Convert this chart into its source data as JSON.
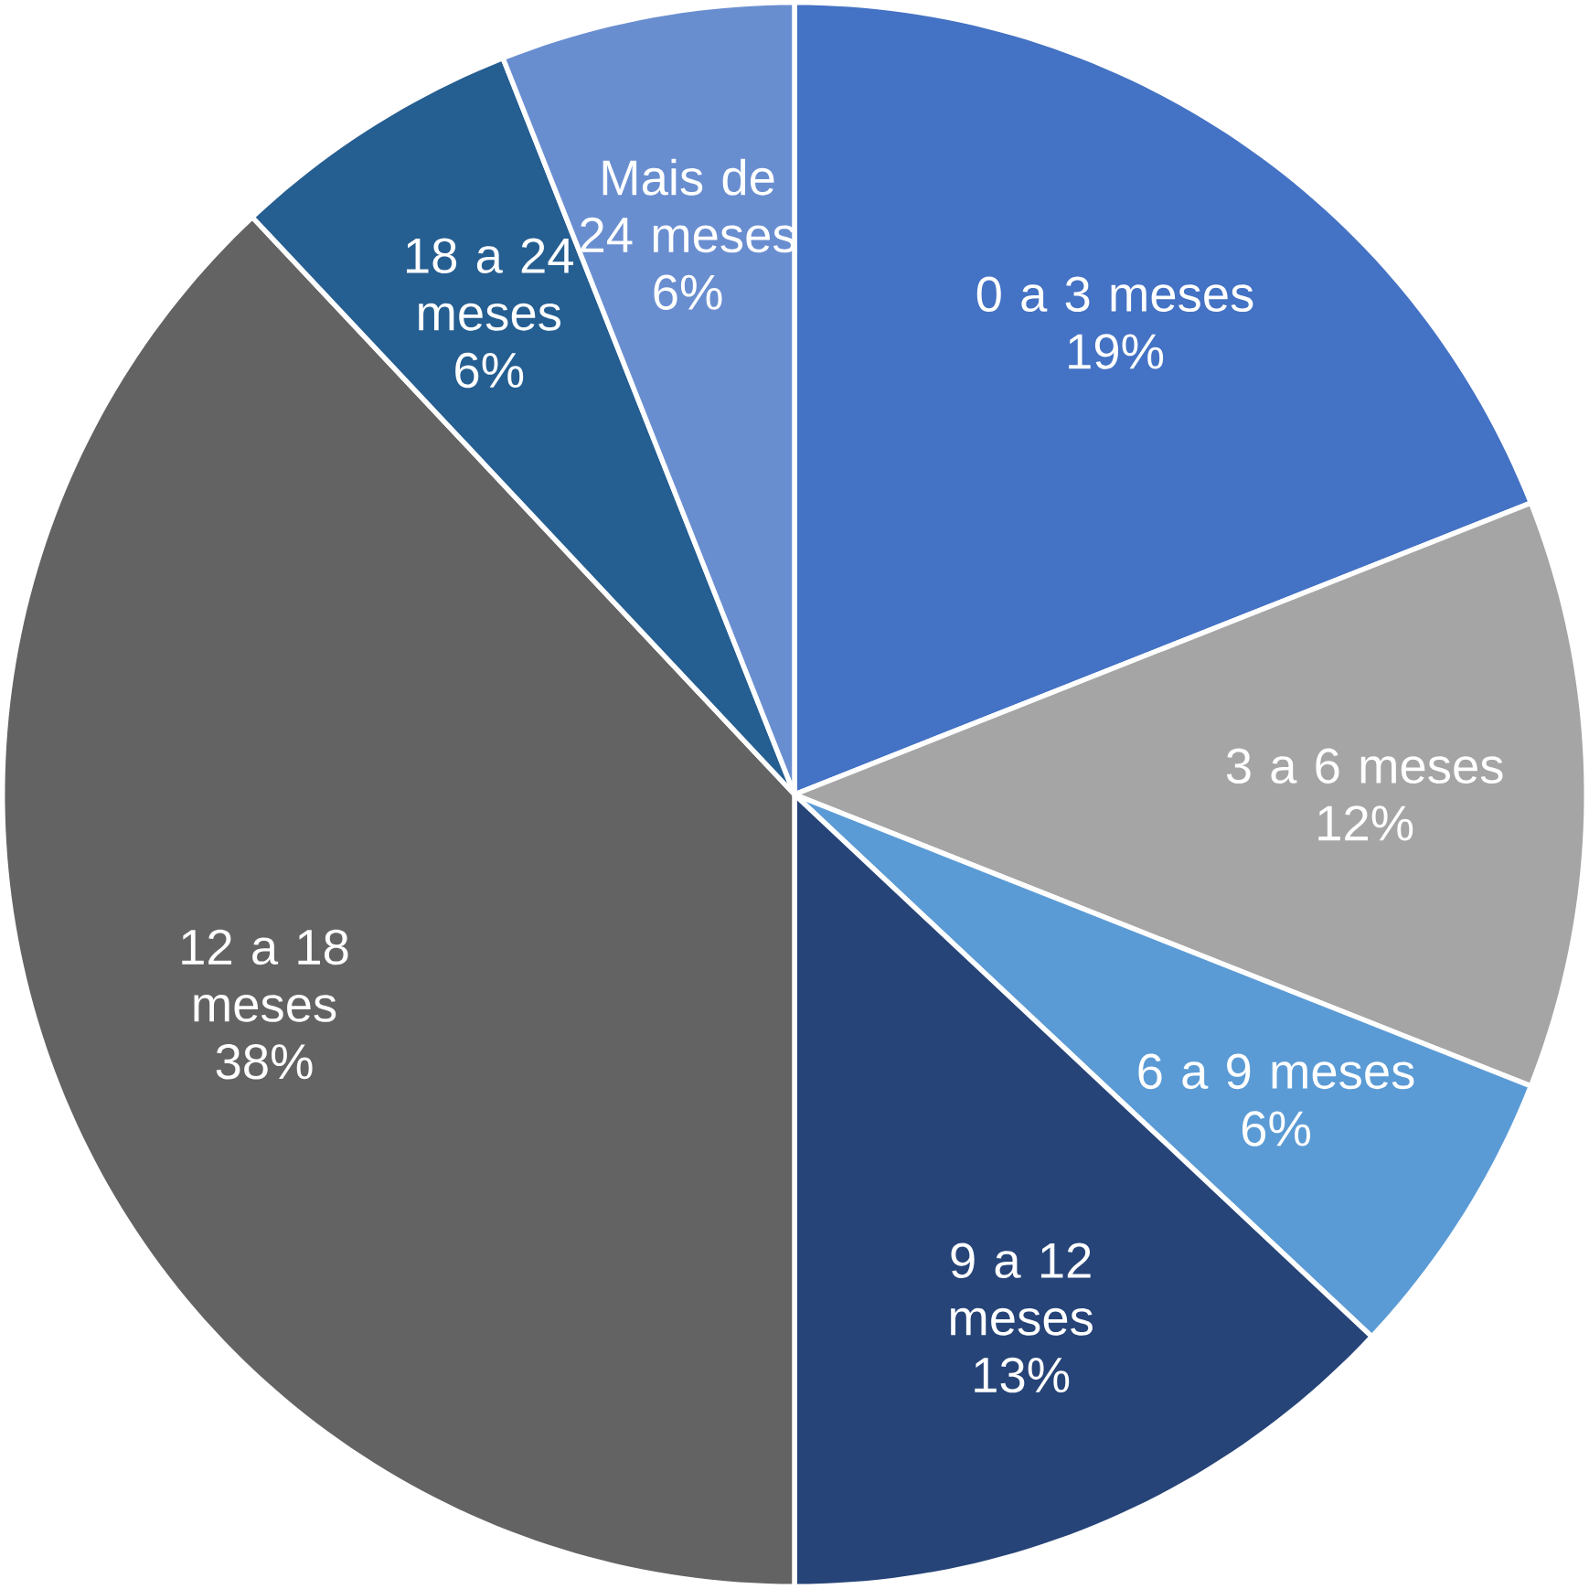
{
  "chart_data": {
    "type": "pie",
    "categories": [
      "0 a 3 meses",
      "3 a 6 meses",
      "6 a 9 meses",
      "9 a 12 meses",
      "12 a 18 meses",
      "18 a 24 meses",
      "Mais de 24 meses"
    ],
    "values": [
      19,
      12,
      6,
      13,
      38,
      6,
      6
    ],
    "value_labels": [
      "19%",
      "12%",
      "6%",
      "13%",
      "38%",
      "6%",
      "6%"
    ],
    "colors": [
      "#4472c4",
      "#a5a5a5",
      "#5b9bd5",
      "#264478",
      "#636363",
      "#255e91",
      "#698ed0"
    ]
  }
}
